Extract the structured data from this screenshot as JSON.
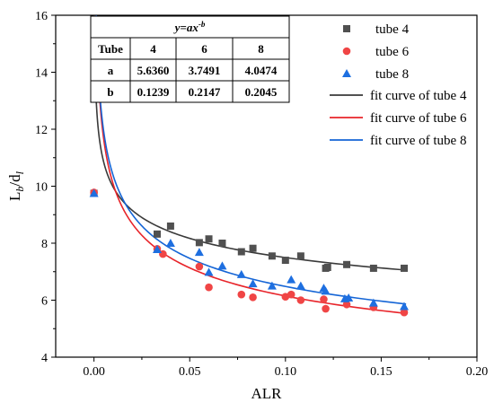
{
  "chart_data": {
    "type": "scatter",
    "xlabel": "ALR",
    "ylabel": "L_b/d_l",
    "xlim": [
      -0.02,
      0.2
    ],
    "ylim": [
      4,
      16
    ],
    "xticks": [
      0.0,
      0.05,
      0.1,
      0.15,
      0.2
    ],
    "xtick_labels": [
      "0.00",
      "0.05",
      "0.10",
      "0.15",
      "0.20"
    ],
    "yticks": [
      4,
      6,
      8,
      10,
      12,
      14,
      16
    ],
    "ytick_labels": [
      "4",
      "6",
      "8",
      "10",
      "12",
      "14",
      "16"
    ],
    "grid": false,
    "legend_position": "top-right",
    "series": [
      {
        "name": "tube 4",
        "marker": "square",
        "color": "#505050",
        "x": [
          0.0,
          0.033,
          0.04,
          0.055,
          0.06,
          0.067,
          0.077,
          0.083,
          0.093,
          0.1,
          0.108,
          0.121,
          0.122,
          0.132,
          0.146,
          0.162
        ],
        "y": [
          9.75,
          8.32,
          8.6,
          8.02,
          8.15,
          8.0,
          7.7,
          7.82,
          7.55,
          7.4,
          7.55,
          7.12,
          7.15,
          7.25,
          7.12,
          7.12
        ]
      },
      {
        "name": "tube 6",
        "marker": "circle",
        "color": "#f04545",
        "x": [
          0.0,
          0.033,
          0.036,
          0.055,
          0.06,
          0.077,
          0.083,
          0.1,
          0.103,
          0.108,
          0.12,
          0.121,
          0.132,
          0.146,
          0.162
        ],
        "y": [
          9.78,
          7.8,
          7.62,
          7.18,
          6.45,
          6.2,
          6.1,
          6.12,
          6.2,
          6.0,
          6.03,
          5.7,
          5.85,
          5.75,
          5.57
        ]
      },
      {
        "name": "tube 8",
        "marker": "triangle",
        "color": "#1e6fe0",
        "x": [
          0.0,
          0.033,
          0.04,
          0.055,
          0.06,
          0.067,
          0.077,
          0.083,
          0.093,
          0.103,
          0.108,
          0.12,
          0.121,
          0.131,
          0.133,
          0.146,
          0.162
        ],
        "y": [
          9.75,
          7.78,
          8.0,
          7.68,
          6.98,
          7.2,
          6.9,
          6.58,
          6.5,
          6.72,
          6.5,
          6.42,
          6.32,
          6.05,
          6.08,
          5.9,
          5.78
        ]
      }
    ],
    "fits": [
      {
        "name": "fit curve of tube 4",
        "a": 5.636,
        "b": 0.1239,
        "color": "#3a3a3a"
      },
      {
        "name": "fit curve of tube 6",
        "a": 3.7491,
        "b": 0.2147,
        "color": "#e8242a"
      },
      {
        "name": "fit curve of tube 8",
        "a": 4.0474,
        "b": 0.2045,
        "color": "#1565d6"
      }
    ],
    "table": {
      "title": "y=ax",
      "title_sup": "-b",
      "header": [
        "Tube",
        "4",
        "6",
        "8"
      ],
      "rows": [
        [
          "a",
          "5.6360",
          "3.7491",
          "4.0474"
        ],
        [
          "b",
          "0.1239",
          "0.2147",
          "0.2045"
        ]
      ]
    }
  }
}
